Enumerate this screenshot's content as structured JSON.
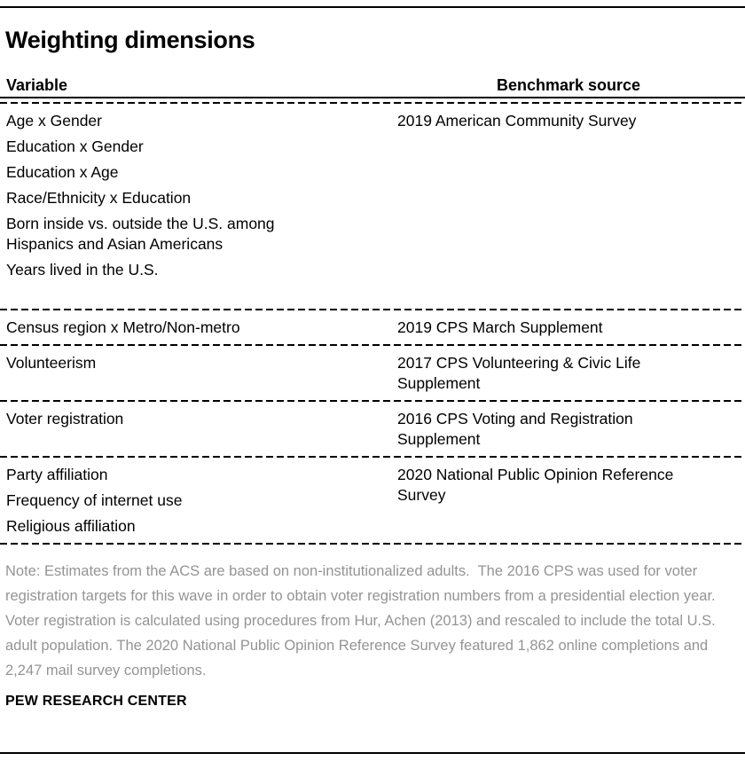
{
  "title": "Weighting dimensions",
  "table": {
    "columns": [
      "Variable",
      "Benchmark source"
    ],
    "rows": [
      {
        "variables": [
          "Age x Gender",
          "Education x Gender",
          "Education x Age",
          "Race/Ethnicity x Education",
          "Born inside vs. outside the U.S. among Hispanics and Asian Americans",
          "Years lived in the U.S."
        ],
        "benchmark": "2019 American Community Survey"
      },
      {
        "variables": [
          "Census region x Metro/Non-metro"
        ],
        "benchmark": "2019 CPS March Supplement"
      },
      {
        "variables": [
          "Volunteerism"
        ],
        "benchmark": "2017 CPS Volunteering & Civic Life Supplement"
      },
      {
        "variables": [
          "Voter registration"
        ],
        "benchmark": "2016 CPS Voting and Registration Supplement"
      },
      {
        "variables": [
          "Party affiliation",
          "Frequency of internet use",
          "Religious affiliation"
        ],
        "benchmark": "2020 National Public Opinion Reference Survey"
      }
    ]
  },
  "note": "Note: Estimates from the ACS are based on non-institutionalized adults.  The 2016 CPS was used for voter registration targets for this wave in order to obtain voter registration numbers from a presidential election year. Voter registration is calculated using procedures from Hur, Achen (2013) and rescaled to include the total U.S. adult population. The 2020 National Public Opinion Reference Survey featured 1,862 online completions and 2,247 mail survey completions.",
  "footer": "PEW RESEARCH CENTER",
  "colors": {
    "text": "#000000",
    "note_text": "#949494",
    "rule": "#000000"
  }
}
